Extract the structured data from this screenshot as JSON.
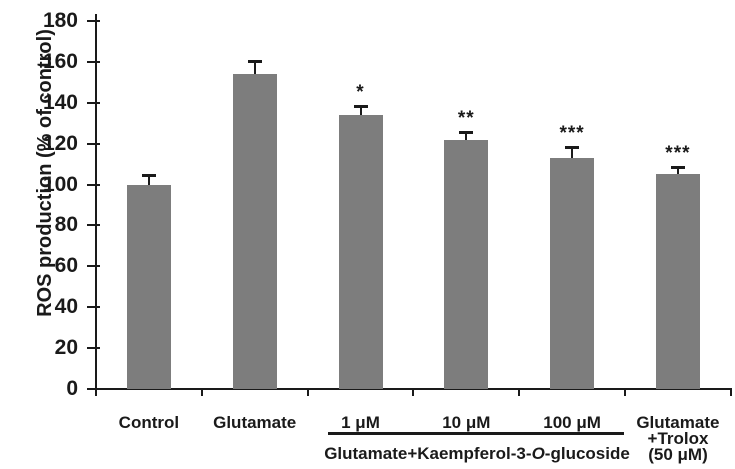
{
  "figure": {
    "colors": {
      "bar": "#7d7d7d",
      "axis": "#1a1a1a",
      "text": "#1a1a1a",
      "background": "#ffffff"
    }
  },
  "chart_data": {
    "type": "bar",
    "title": "",
    "xlabel": "",
    "ylabel": "ROS production (% of control)",
    "ylim": [
      0,
      180
    ],
    "ytick_step": 20,
    "yticks": [
      0,
      20,
      40,
      60,
      80,
      100,
      120,
      140,
      160,
      180
    ],
    "grid": false,
    "legend_position": "none",
    "categories": [
      "Control",
      "Glutamate",
      "1 μM",
      "10 μM",
      "100 μM",
      "Glutamate"
    ],
    "values": [
      100,
      154,
      134,
      122,
      113,
      105
    ],
    "errors": [
      4,
      6,
      4,
      3,
      5,
      3
    ],
    "sig_markers": [
      "",
      "",
      "*",
      "**",
      "***",
      "***"
    ],
    "annotations": {
      "kaempferol_group": {
        "applies_to": [
          "1 μM",
          "10 μM",
          "100 μM"
        ],
        "label_prefix": "Glutamate+Kaempferol-3-",
        "label_o": "O",
        "label_suffix": "-glucoside"
      },
      "trolox_extra_lines": [
        "+Trolox",
        "(50 μM)"
      ]
    }
  }
}
